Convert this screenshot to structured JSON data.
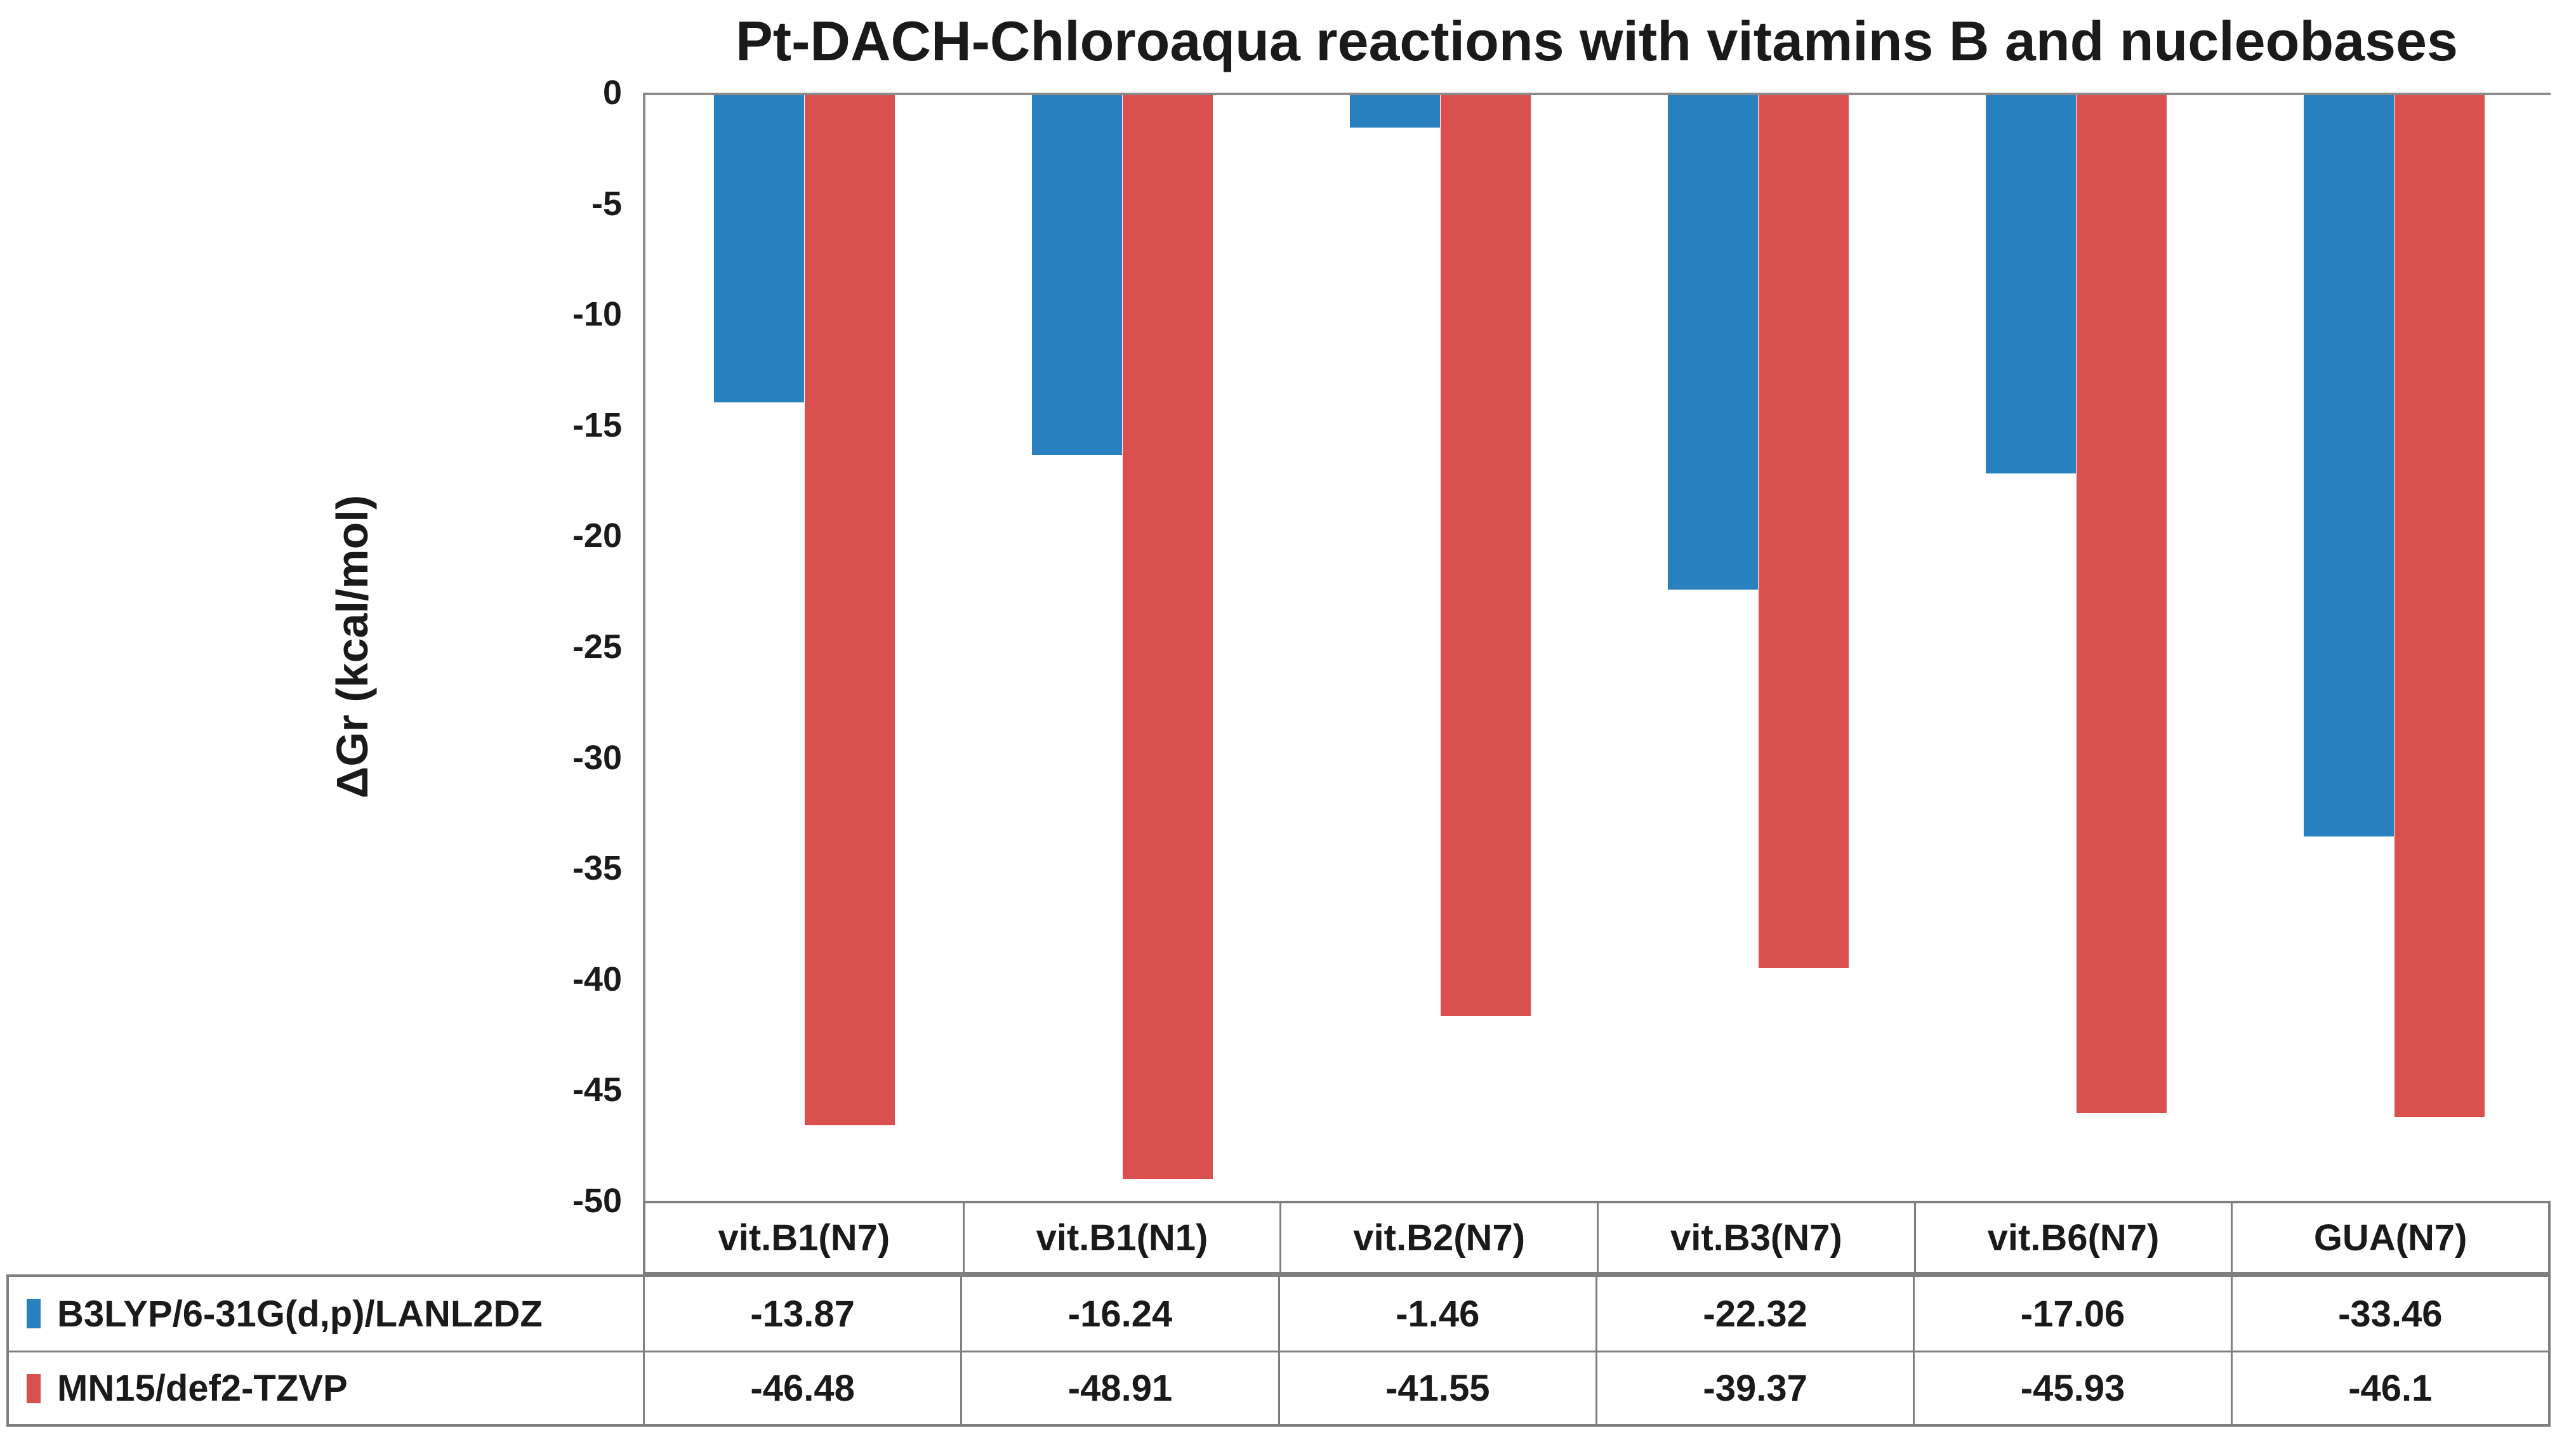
{
  "chart_data": {
    "type": "bar",
    "title": "Pt-DACH-Chloroaqua reactions with vitamins B and nucleobases",
    "xlabel": "",
    "ylabel": "ΔGr (kcal/mol)",
    "categories": [
      "vit.B1(N7)",
      "vit.B1(N1)",
      "vit.B2(N7)",
      "vit.B3(N7)",
      "vit.B6(N7)",
      "GUA(N7)"
    ],
    "series": [
      {
        "name": "B3LYP/6-31G(d,p)/LANL2DZ",
        "color": "#2980BE",
        "values": [
          -13.87,
          -16.24,
          -1.46,
          -22.32,
          -17.06,
          -33.46
        ],
        "value_labels": [
          "-13.87",
          "-16.24",
          "-1.46",
          "-22.32",
          "-17.06",
          "-33.46"
        ]
      },
      {
        "name": "MN15/def2-TZVP",
        "color": "#D9504E",
        "values": [
          -46.48,
          -48.91,
          -41.55,
          -39.37,
          -45.93,
          -46.1
        ],
        "value_labels": [
          "-46.48",
          "-48.91",
          "-41.55",
          "-39.37",
          "-45.93",
          "-46.1"
        ]
      }
    ],
    "ylim": [
      0,
      -50
    ],
    "ytick_step": 5,
    "yticks": [
      "0",
      "-5",
      "-10",
      "-15",
      "-20",
      "-25",
      "-30",
      "-35",
      "-40",
      "-45",
      "-50"
    ],
    "grid": false,
    "legend_position": "data-table-left-column",
    "data_table_attached": true
  }
}
